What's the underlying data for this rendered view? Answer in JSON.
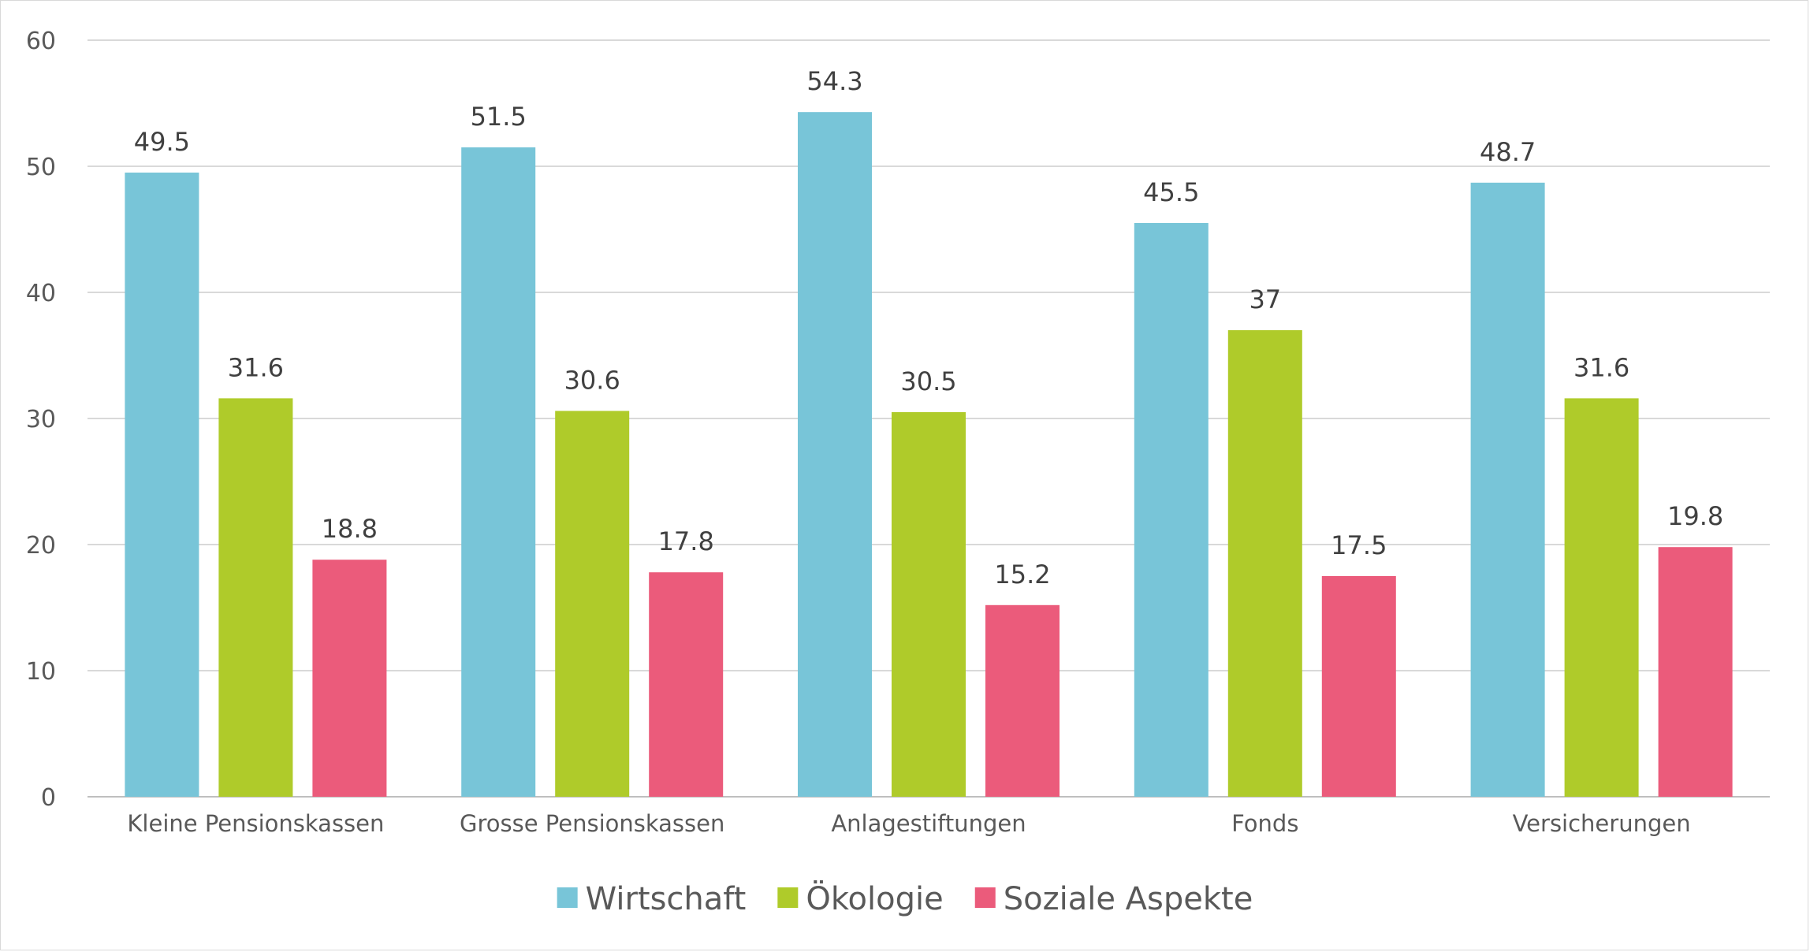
{
  "chart_data": {
    "type": "bar",
    "title": "",
    "xlabel": "",
    "ylabel": "",
    "ylim": [
      0,
      60
    ],
    "yticks": [
      0,
      10,
      20,
      30,
      40,
      50,
      60
    ],
    "grid": true,
    "legend_position": "bottom",
    "categories": [
      "Kleine Pensionskassen",
      "Grosse Pensionskassen",
      "Anlagestiftungen",
      "Fonds",
      "Versicherungen"
    ],
    "series": [
      {
        "name": "Wirtschaft",
        "color": "#78C5D8",
        "values": [
          49.5,
          51.5,
          54.3,
          45.5,
          48.7
        ],
        "labels": [
          "49.5",
          "51.5",
          "54.3",
          "45.5",
          "48.7"
        ]
      },
      {
        "name": "Ökologie",
        "color": "#AFCB2A",
        "values": [
          31.6,
          30.6,
          30.5,
          37,
          31.6
        ],
        "labels": [
          "31.6",
          "30.6",
          "30.5",
          "37",
          "31.6"
        ]
      },
      {
        "name": "Soziale Aspekte",
        "color": "#EB5B7B",
        "values": [
          18.8,
          17.8,
          15.2,
          17.5,
          19.8
        ],
        "labels": [
          "18.8",
          "17.8",
          "15.2",
          "17.5",
          "19.8"
        ]
      }
    ],
    "gridline_color": "#d9d9d9",
    "axis_color": "#bfbfbf"
  }
}
